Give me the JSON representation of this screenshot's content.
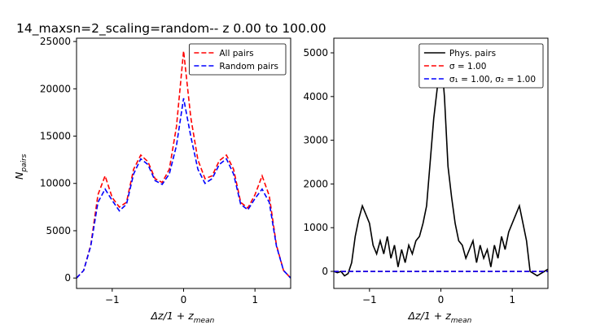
{
  "chart_data": [
    {
      "type": "line",
      "title": "14_maxsn=2_scaling=random-- z 0.00 to 100.00",
      "x_label": {
        "text": "Δz/1 + z",
        "subscript": "mean"
      },
      "y_label": {
        "text": "N",
        "subscript": "pairs"
      },
      "x": [
        -1.5,
        -1.4,
        -1.3,
        -1.2,
        -1.1,
        -1.0,
        -0.9,
        -0.8,
        -0.7,
        -0.6,
        -0.5,
        -0.4,
        -0.3,
        -0.2,
        -0.1,
        0.0,
        0.1,
        0.2,
        0.3,
        0.4,
        0.5,
        0.6,
        0.7,
        0.8,
        0.9,
        1.0,
        1.1,
        1.2,
        1.3,
        1.4,
        1.5
      ],
      "series": [
        {
          "name": "All pairs",
          "color": "#ff0000",
          "linestyle": "dashed",
          "values": [
            0,
            800,
            3500,
            8800,
            10800,
            8500,
            7500,
            8000,
            11500,
            13000,
            12300,
            10500,
            10100,
            11500,
            16000,
            24000,
            17000,
            12500,
            10500,
            10800,
            12400,
            13000,
            11500,
            8000,
            7400,
            8800,
            10800,
            8700,
            3500,
            800,
            0
          ]
        },
        {
          "name": "Random pairs",
          "color": "#0000ff",
          "linestyle": "dashed",
          "values": [
            0,
            800,
            3400,
            8000,
            9400,
            8200,
            7100,
            7800,
            11000,
            12600,
            12000,
            10300,
            9900,
            11000,
            14000,
            19000,
            15000,
            11500,
            10000,
            10500,
            12000,
            12600,
            11000,
            7800,
            7200,
            8400,
            9400,
            8000,
            3400,
            800,
            0
          ]
        }
      ],
      "xlim": [
        -1.5,
        1.5
      ],
      "xticks": [
        {
          "value": -1,
          "label": "−1"
        },
        0,
        1
      ],
      "ylim": [
        -1100,
        25350
      ],
      "yticks": [
        0,
        5000,
        10000,
        15000,
        20000,
        25000
      ],
      "legend": "upper right"
    },
    {
      "type": "line",
      "x_label": {
        "text": "Δz/1 + z",
        "subscript": "mean"
      },
      "x": [
        -1.5,
        -1.45,
        -1.4,
        -1.35,
        -1.3,
        -1.25,
        -1.2,
        -1.15,
        -1.1,
        -1.05,
        -1.0,
        -0.95,
        -0.9,
        -0.85,
        -0.8,
        -0.75,
        -0.7,
        -0.65,
        -0.6,
        -0.55,
        -0.5,
        -0.45,
        -0.4,
        -0.35,
        -0.3,
        -0.25,
        -0.2,
        -0.15,
        -0.1,
        -0.05,
        0.0,
        0.05,
        0.1,
        0.15,
        0.2,
        0.25,
        0.3,
        0.35,
        0.4,
        0.45,
        0.5,
        0.55,
        0.6,
        0.65,
        0.7,
        0.75,
        0.8,
        0.85,
        0.9,
        0.95,
        1.0,
        1.05,
        1.1,
        1.15,
        1.2,
        1.25,
        1.3,
        1.35,
        1.4,
        1.45,
        1.5
      ],
      "series": [
        {
          "name": "Phys. pairs",
          "color": "#000000",
          "linestyle": "solid",
          "values": [
            0,
            -30,
            0,
            -100,
            -50,
            200,
            800,
            1200,
            1500,
            1300,
            1100,
            600,
            400,
            700,
            400,
            800,
            300,
            600,
            100,
            500,
            200,
            600,
            400,
            700,
            800,
            1100,
            1500,
            2500,
            3500,
            4200,
            5000,
            4000,
            2400,
            1700,
            1100,
            700,
            600,
            300,
            500,
            700,
            200,
            600,
            300,
            500,
            100,
            600,
            300,
            800,
            500,
            900,
            1100,
            1300,
            1500,
            1100,
            700,
            0,
            -50,
            -100,
            -50,
            0,
            50
          ]
        },
        {
          "name": "σ =  1.00",
          "color": "#ff0000",
          "linestyle": "dashed",
          "values": [
            0,
            0,
            0,
            0,
            0,
            0,
            0,
            0,
            0,
            0,
            0,
            0,
            0,
            0,
            0,
            0,
            0,
            0,
            0,
            0,
            0,
            0,
            0,
            0,
            0,
            0,
            0,
            0,
            0,
            0,
            0,
            0,
            0,
            0,
            0,
            0,
            0,
            0,
            0,
            0,
            0,
            0,
            0,
            0,
            0,
            0,
            0,
            0,
            0,
            0,
            0,
            0,
            0,
            0,
            0,
            0,
            0,
            0,
            0,
            0,
            0
          ]
        },
        {
          "name": "σ₁ =  1.00, σ₂ =  1.00",
          "color": "#0000ff",
          "linestyle": "dashed",
          "values": [
            0,
            0,
            0,
            0,
            0,
            0,
            0,
            0,
            0,
            0,
            0,
            0,
            0,
            0,
            0,
            0,
            0,
            0,
            0,
            0,
            0,
            0,
            0,
            0,
            0,
            0,
            0,
            0,
            0,
            0,
            0,
            0,
            0,
            0,
            0,
            0,
            0,
            0,
            0,
            0,
            0,
            0,
            0,
            0,
            0,
            0,
            0,
            0,
            0,
            0,
            0,
            0,
            0,
            0,
            0,
            0,
            0,
            0,
            0,
            0,
            0
          ]
        }
      ],
      "xlim": [
        -1.5,
        1.5
      ],
      "xticks": [
        {
          "value": -1,
          "label": "−1"
        },
        0,
        1
      ],
      "ylim": [
        -390,
        5335
      ],
      "yticks": [
        0,
        1000,
        2000,
        3000,
        4000,
        5000
      ],
      "legend": "upper right"
    }
  ]
}
